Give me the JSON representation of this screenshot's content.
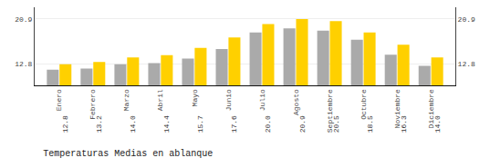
{
  "chart_data": {
    "type": "bar",
    "title": "Temperaturas Medias en ablanque",
    "categories": [
      "Enero",
      "Febrero",
      "Marzo",
      "Abril",
      "Mayo",
      "Junio",
      "Julio",
      "Agosto",
      "Septiembre",
      "Octubre",
      "Noviembre",
      "Diciembre"
    ],
    "series": [
      {
        "color": "#AAAAAA",
        "values": [
          11.8,
          12.0,
          12.8,
          13.0,
          13.8,
          15.5,
          18.5,
          19.2,
          18.8,
          17.2,
          14.5,
          12.5
        ]
      },
      {
        "color": "#FFD000",
        "values": [
          12.8,
          13.2,
          14.0,
          14.4,
          15.7,
          17.6,
          20.0,
          20.9,
          20.5,
          18.5,
          16.3,
          14.0
        ],
        "data_labels": true,
        "value_labels": [
          "12.8",
          "13.2",
          "14.0",
          "14.4",
          "15.7",
          "17.6",
          "20.0",
          "20.9",
          "20.5",
          "18.5",
          "16.3",
          "14.0"
        ]
      }
    ],
    "ylim": [
      9.0,
      23.0
    ],
    "yticks": [
      12.8,
      20.9
    ],
    "y2lim": [
      9.0,
      23.0
    ],
    "y2ticks": [
      12.8,
      20.9
    ],
    "grid": true
  }
}
